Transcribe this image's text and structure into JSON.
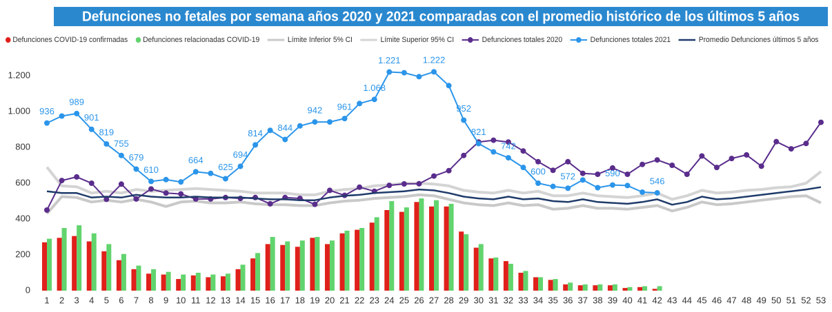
{
  "chart_data": {
    "type": "combo",
    "title": "Defunciones no fetales por semana años 2020 y 2021 comparadas con el promedio histórico de los últimos 5 años",
    "categories": [
      "1",
      "2",
      "3",
      "4",
      "5",
      "6",
      "7",
      "8",
      "9",
      "10",
      "11",
      "12",
      "13",
      "14",
      "15",
      "16",
      "17",
      "18",
      "19",
      "20",
      "21",
      "22",
      "23",
      "24",
      "25",
      "26",
      "27",
      "28",
      "29",
      "30",
      "31",
      "32",
      "33",
      "34",
      "35",
      "36",
      "37",
      "38",
      "39",
      "40",
      "41",
      "42",
      "43",
      "44",
      "45",
      "46",
      "47",
      "48",
      "49",
      "50",
      "51",
      "52",
      "53"
    ],
    "ylim": [
      0,
      1250
    ],
    "yticks": [
      0,
      200,
      400,
      600,
      800,
      {
        "value": 1000,
        "label": "1.000"
      },
      {
        "value": 1200,
        "label": "1.200"
      }
    ],
    "grid": false,
    "legend": "top",
    "series": [
      {
        "name": "Defunciones COVID-19 confirmadas",
        "kind": "bar",
        "color": "#e0201b",
        "values": [
          270,
          295,
          305,
          275,
          220,
          170,
          120,
          95,
          90,
          65,
          85,
          75,
          80,
          120,
          180,
          260,
          255,
          245,
          295,
          260,
          320,
          340,
          380,
          450,
          440,
          495,
          470,
          470,
          330,
          240,
          180,
          165,
          100,
          75,
          60,
          35,
          30,
          30,
          30,
          15,
          20,
          10,
          null,
          null,
          null,
          null,
          null,
          null,
          null,
          null,
          null,
          null,
          null
        ]
      },
      {
        "name": "Defunciones relacionadas COVID-19",
        "kind": "bar",
        "color": "#62d46e",
        "values": [
          290,
          350,
          365,
          320,
          260,
          205,
          140,
          120,
          105,
          90,
          100,
          90,
          95,
          145,
          210,
          300,
          275,
          280,
          300,
          280,
          335,
          350,
          410,
          500,
          465,
          515,
          505,
          485,
          315,
          260,
          185,
          150,
          110,
          75,
          65,
          45,
          35,
          35,
          35,
          20,
          25,
          25,
          null,
          null,
          null,
          null,
          null,
          null,
          null,
          null,
          null,
          null,
          null
        ]
      },
      {
        "name": "Límite Inferior 5% CI",
        "kind": "line",
        "color": "#c9c9c9",
        "width": 4,
        "markers": false,
        "values": [
          430,
          525,
          520,
          495,
          505,
          495,
          510,
          495,
          470,
          495,
          500,
          490,
          490,
          495,
          485,
          480,
          480,
          475,
          475,
          490,
          500,
          505,
          515,
          520,
          525,
          535,
          530,
          510,
          490,
          480,
          475,
          490,
          475,
          480,
          455,
          460,
          475,
          460,
          460,
          455,
          465,
          475,
          445,
          465,
          495,
          480,
          485,
          495,
          505,
          515,
          525,
          530,
          490
        ]
      },
      {
        "name": "Límite Superior 95% CI",
        "kind": "line",
        "color": "#d4d4d4",
        "width": 4,
        "markers": false,
        "values": [
          690,
          585,
          580,
          545,
          555,
          545,
          565,
          555,
          560,
          565,
          570,
          565,
          560,
          555,
          545,
          545,
          545,
          535,
          535,
          555,
          565,
          570,
          585,
          590,
          600,
          600,
          595,
          585,
          560,
          550,
          545,
          560,
          545,
          555,
          530,
          530,
          545,
          530,
          525,
          520,
          530,
          545,
          510,
          530,
          560,
          545,
          550,
          560,
          565,
          575,
          580,
          600,
          665
        ]
      },
      {
        "name": "Defunciones totales 2020",
        "kind": "line",
        "color": "#5a2d8c",
        "width": 2,
        "markers": true,
        "values": [
          450,
          615,
          635,
          600,
          510,
          595,
          512,
          568,
          545,
          540,
          512,
          512,
          520,
          515,
          520,
          485,
          520,
          515,
          482,
          560,
          532,
          578,
          555,
          588,
          596,
          597,
          640,
          670,
          755,
          830,
          840,
          830,
          780,
          720,
          672,
          720,
          655,
          650,
          685,
          650,
          705,
          730,
          700,
          650,
          752,
          688,
          738,
          758,
          695,
          832,
          792,
          822,
          940
        ]
      },
      {
        "name": "Defunciones totales 2021",
        "kind": "line",
        "color": "#2b95ea",
        "width": 2,
        "markers": true,
        "values": [
          936,
          975,
          989,
          901,
          819,
          755,
          679,
          610,
          620,
          607,
          664,
          655,
          625,
          694,
          814,
          895,
          844,
          920,
          942,
          942,
          961,
          1045,
          1068,
          1221,
          1217,
          1195,
          1222,
          1145,
          952,
          821,
          775,
          742,
          688,
          600,
          582,
          572,
          618,
          575,
          590,
          587,
          550,
          546,
          null,
          null,
          null,
          null,
          null,
          null,
          null,
          null,
          null,
          null,
          null
        ],
        "value_labels": [
          "936",
          null,
          "989",
          "901",
          "819",
          "755",
          "679",
          "610",
          null,
          null,
          "664",
          null,
          "625",
          "694",
          "814",
          null,
          "844",
          null,
          "942",
          null,
          "961",
          null,
          "1.068",
          "1.221",
          null,
          null,
          "1.222",
          null,
          "952",
          "821",
          null,
          "742",
          null,
          "600",
          null,
          "572",
          null,
          null,
          "590",
          null,
          null,
          "546",
          null,
          null,
          null,
          null,
          null,
          null,
          null,
          null,
          null,
          null,
          null
        ]
      },
      {
        "name": "Promedio Defunciones últimos 5 años",
        "kind": "line",
        "color": "#1f3b6a",
        "width": 2.5,
        "markers": false,
        "values": [
          555,
          545,
          545,
          520,
          525,
          520,
          535,
          525,
          520,
          520,
          525,
          520,
          520,
          520,
          515,
          510,
          510,
          505,
          505,
          520,
          530,
          535,
          545,
          550,
          555,
          565,
          560,
          545,
          525,
          515,
          510,
          525,
          510,
          515,
          500,
          495,
          510,
          495,
          490,
          485,
          495,
          510,
          480,
          495,
          525,
          510,
          515,
          525,
          535,
          545,
          555,
          565,
          578
        ]
      }
    ]
  }
}
